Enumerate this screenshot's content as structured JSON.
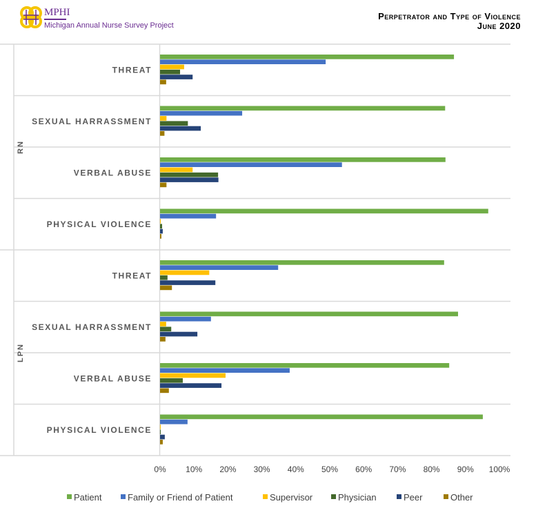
{
  "header": {
    "logo_name": "MPHI",
    "logo_subtitle": "Michigan Annual Nurse Survey Project",
    "title_line1": "Perpetrator and Type of Violence",
    "title_line2": "June 2020"
  },
  "chart_data": {
    "type": "bar",
    "orientation": "horizontal",
    "title": "Perpetrator and Type of Violence, June 2020",
    "groups": [
      {
        "name": "RN",
        "categories": [
          "THREAT",
          "SEXUAL HARRASSMENT",
          "VERBAL ABUSE",
          "PHYSICAL VIOLENCE"
        ]
      },
      {
        "name": "LPN",
        "categories": [
          "THREAT",
          "SEXUAL HARRASSMENT",
          "VERBAL ABUSE",
          "PHYSICAL VIOLENCE"
        ]
      }
    ],
    "series": [
      {
        "name": "Patient",
        "color": "#70ad47",
        "values": [
          86.6,
          84.0,
          84.1,
          96.7,
          83.7,
          87.8,
          85.2,
          95.1
        ]
      },
      {
        "name": "Family or Friend of Patient",
        "color": "#4472c4",
        "values": [
          48.8,
          24.2,
          53.6,
          16.5,
          34.8,
          15.0,
          38.2,
          8.1
        ]
      },
      {
        "name": "Supervisor",
        "color": "#ffc000",
        "values": [
          7.1,
          1.9,
          9.6,
          0.2,
          14.5,
          1.8,
          19.3,
          0.2
        ]
      },
      {
        "name": "Physician",
        "color": "#43682b",
        "values": [
          5.9,
          8.2,
          17.1,
          0.6,
          2.2,
          3.3,
          6.7,
          0.2
        ]
      },
      {
        "name": "Peer",
        "color": "#264478",
        "values": [
          9.6,
          12.0,
          17.2,
          0.8,
          16.3,
          11.0,
          18.1,
          1.4
        ]
      },
      {
        "name": "Other",
        "color": "#9e7a00",
        "values": [
          1.8,
          1.3,
          1.9,
          0.4,
          3.5,
          1.6,
          2.6,
          0.8
        ]
      }
    ],
    "xlim": [
      0,
      100
    ],
    "x_ticks": [
      "0%",
      "10%",
      "20%",
      "30%",
      "40%",
      "50%",
      "60%",
      "70%",
      "80%",
      "90%",
      "100%"
    ],
    "xlabel": "",
    "ylabel": "",
    "legend_position": "bottom",
    "grid": false
  }
}
